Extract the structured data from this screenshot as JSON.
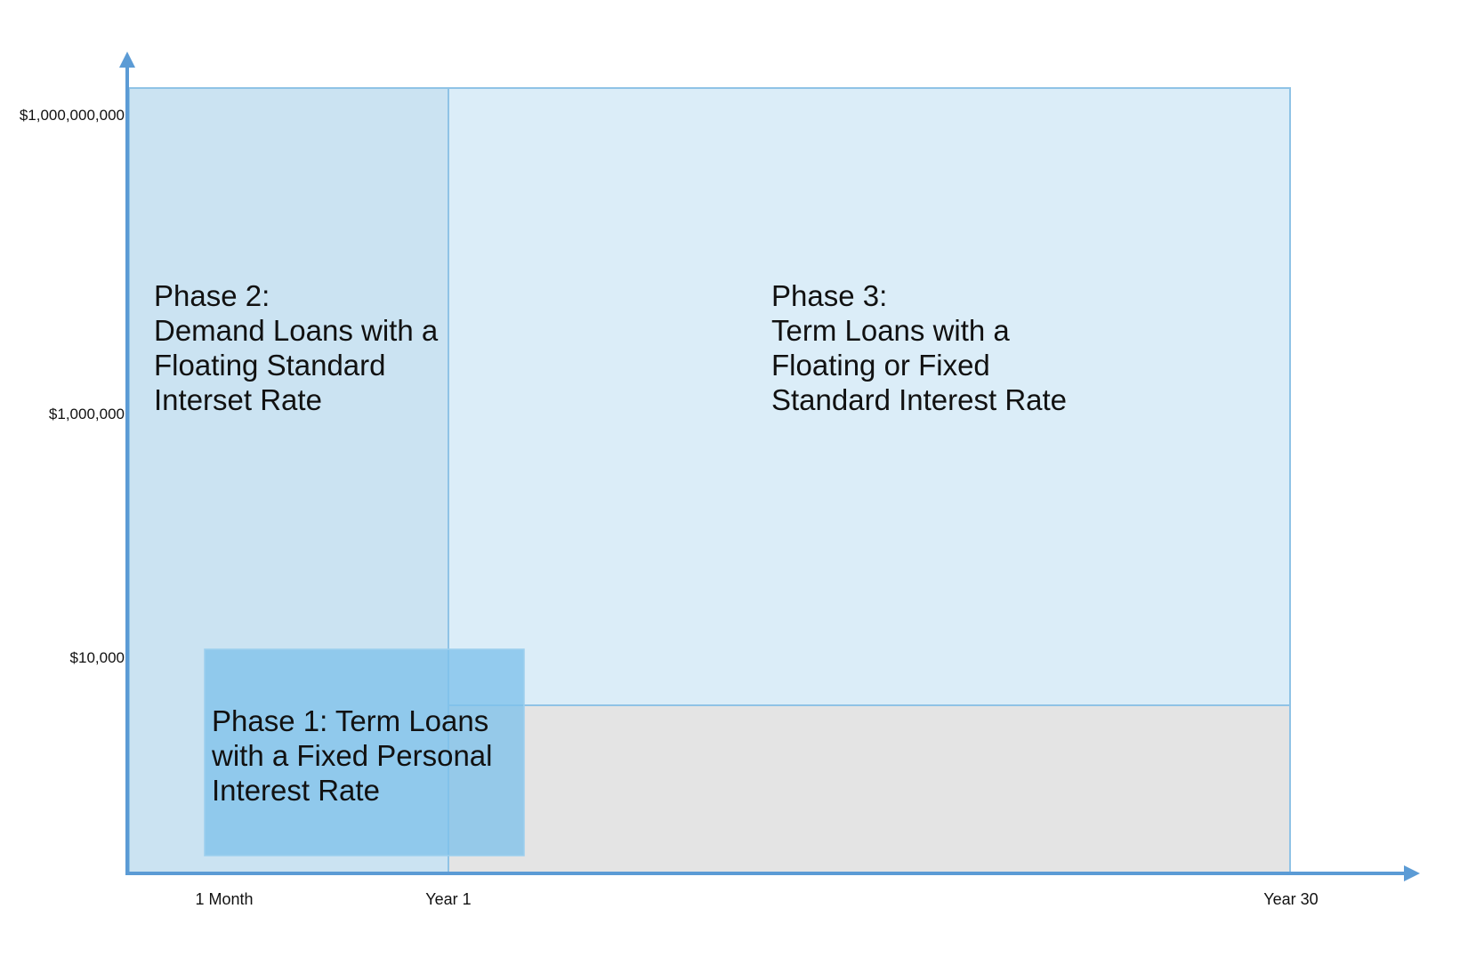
{
  "colors": {
    "axis": "#5b9bd5",
    "phase2_fill": "#cbe3f2",
    "phase3_fill": "#dbedf8",
    "phase_border": "#8fc3e6",
    "gray_region": "#e4e4e4",
    "phase1_fill": "#7fc1ea",
    "phase1_border": "#9ccfee"
  },
  "y_axis": {
    "ticks": [
      "$1,000,000,000",
      "$1,000,000",
      "$10,000"
    ]
  },
  "x_axis": {
    "ticks": [
      "1 Month",
      "Year 1",
      "Year 30"
    ]
  },
  "phases": {
    "phase2": {
      "lines": [
        "Phase 2:",
        "Demand Loans with a",
        "Floating Standard",
        "Interset Rate"
      ]
    },
    "phase3": {
      "lines": [
        "Phase 3:",
        "Term Loans with a",
        "Floating or Fixed",
        "Standard Interest Rate"
      ]
    },
    "phase1": {
      "lines": [
        "Phase 1: Term Loans",
        "with a Fixed Personal",
        "Interest Rate"
      ]
    }
  }
}
